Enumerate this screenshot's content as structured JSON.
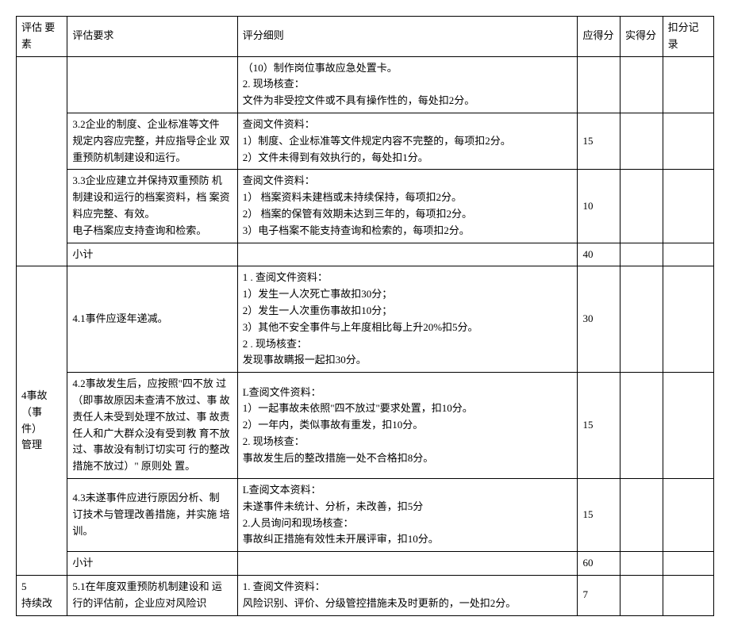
{
  "headers": {
    "element": "评估  要素",
    "requirement": "评估要求",
    "detail": "评分细则",
    "score": "应得分",
    "actual": "实得分",
    "deduct": "扣分记录"
  },
  "rows": [
    {
      "element": "",
      "req": "",
      "detail": "   （10）制作岗位事故应急处置卡。\n2. 现场核查：\n文件为非受控文件或不具有操作性的，每处扣2分。",
      "score": ""
    },
    {
      "req": "3.2企业的制度、企业标准等文件  规定内容应完整，并应指导企业  双重预防机制建设和运行。",
      "detail": "查阅文件资料：\n1）制度、企业标准等文件规定内容不完整的，每项扣2分。\n2）文件未得到有效执行的，每处扣1分。",
      "score": "15"
    },
    {
      "req": "3.3企业应建立并保持双重预防    机制建设和运行的档案资料，档  案资料应完整、有效。\n电子档案应支持查询和检索。",
      "detail": "查阅文件资料：\n1） 档案资料未建档或未持续保持，每项扣2分。\n2） 档案的保管有效期未达到三年的，每项扣2分。\n3）电子档案不能支持查询和检索的，每项扣2分。",
      "score": "10"
    },
    {
      "req": "小计",
      "detail": "",
      "score": "40"
    },
    {
      "element": "4事故\n（事件）\n    管理",
      "req": "4.1事件应逐年递减。",
      "detail": "1       . 查阅文件资料：\n1）发生一人次死亡事故扣30分；\n2）发生一人次重伤事故扣10分；\n3）其他不安全事件与上年度相比每上升20%扣5分。\n2        . 现场核查：\n发现事故瞒报一起扣30分。",
      "score": "30"
    },
    {
      "req": "4.2事故发生后，应按照\"四不放    过（即事故原因未查清不放过、事  故责任人未受到处理不放过、事  故责任人和广大群众没有受到教 育不放过、事故没有制订切实可  行的整改措施不放过）\" 原则处 置。",
      "detail": "L查阅文件资料：\n1）一起事故未依照\"四不放过\"要求处置，扣10分。\n2）一年内，类似事故有重发，扣10分。\n2. 现场核查：\n事故发生后的整改措施一处不合格扣8分。",
      "score": "15"
    },
    {
      "req": "4.3未遂事件应进行原因分析、制  订技术与管理改善措施，并实施  培训。",
      "detail": "L查阅文本资料：\n未遂事件未统计、分析，未改善，扣5分\n2.人员询问和现场核查：\n事故纠正措施有效性未开展评审，扣10分。",
      "score": "15"
    },
    {
      "req": "小计",
      "detail": "",
      "score": "60"
    },
    {
      "element": "5\n持续改",
      "req": "5.1在年度双重预防机制建设和    运行的评估前，企业应对风险识",
      "detail": "1. 查阅文件资料：\n风险识别、评价、分级管控措施未及时更新的，一处扣2分。",
      "score": "7"
    }
  ]
}
